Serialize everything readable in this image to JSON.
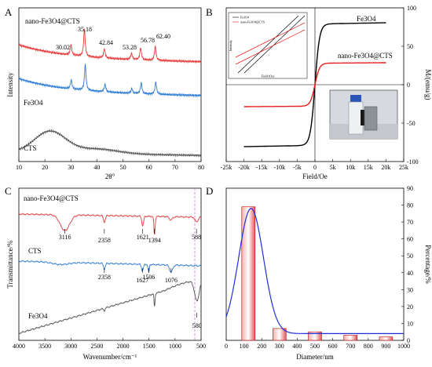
{
  "chart_data": [
    {
      "id": "A",
      "type": "line",
      "panel_label": "A",
      "title": "",
      "xlabel": "2θ°",
      "ylabel": "Intensity",
      "xlim": [
        10,
        80
      ],
      "xticks": [
        10,
        20,
        30,
        40,
        50,
        60,
        70,
        80
      ],
      "series": [
        {
          "name": "nano-Fe3O4@CTS",
          "color": "#e8393a",
          "offset": 0.66,
          "peaks": [
            {
              "x": 30.02,
              "h": 0.07
            },
            {
              "x": 35.18,
              "h": 0.18
            },
            {
              "x": 42.84,
              "h": 0.06
            },
            {
              "x": 53.28,
              "h": 0.04
            },
            {
              "x": 56.78,
              "h": 0.08
            },
            {
              "x": 62.4,
              "h": 0.09
            }
          ]
        },
        {
          "name": "Fe3O4",
          "color": "#2b7bd6",
          "offset": 0.44,
          "peaks": [
            {
              "x": 30.1,
              "h": 0.06
            },
            {
              "x": 35.5,
              "h": 0.17
            },
            {
              "x": 43.1,
              "h": 0.05
            },
            {
              "x": 53.4,
              "h": 0.03
            },
            {
              "x": 57.0,
              "h": 0.07
            },
            {
              "x": 62.6,
              "h": 0.08
            }
          ]
        },
        {
          "name": "CTS",
          "color": "#505050",
          "offset": 0.06,
          "hump": {
            "x": 22,
            "h": 0.14
          }
        }
      ],
      "peak_labels": [
        "30.02",
        "35.18",
        "42.84",
        "53.28",
        "56.78",
        "62.40"
      ],
      "series_labels": [
        "nano-Fe3O4@CTS",
        "Fe3O4",
        "CTS"
      ]
    },
    {
      "id": "B",
      "type": "line",
      "panel_label": "B",
      "title": "",
      "xlabel": "Field/Oe",
      "ylabel": "M/(emu/g)",
      "xlim": [
        -25000,
        25000
      ],
      "ylim": [
        -100,
        100
      ],
      "xticks": [
        "-25k",
        "-20k",
        "-15k",
        "-10k",
        "-5k",
        "0",
        "5k",
        "10k",
        "15k",
        "20k",
        "25k"
      ],
      "yticks": [
        -100,
        -50,
        0,
        50,
        100
      ],
      "series": [
        {
          "name": "Fe3O4",
          "color": "#000000",
          "ms": 79,
          "field_range": [
            -20000,
            20000
          ]
        },
        {
          "name": "nano-Fe3O4@CTS",
          "color": "#e81c1c",
          "ms": 28,
          "field_range": [
            -20000,
            20000
          ]
        }
      ],
      "inset_legend": [
        "Fe3O4",
        "nano-Fe3O4@CTS"
      ],
      "inset_xlabel": "Field (Oe)",
      "inset_ylabel": "Intensity"
    },
    {
      "id": "C",
      "type": "line",
      "panel_label": "C",
      "title": "",
      "xlabel": "Wavenumber/cm⁻¹",
      "ylabel": "Transmittance/%",
      "xlim": [
        4000,
        500
      ],
      "xticks": [
        4000,
        3500,
        3000,
        2500,
        2000,
        1500,
        1000,
        500
      ],
      "series": [
        {
          "name": "nano-Fe3O4@CTS",
          "color": "#e8393a",
          "bands": [
            3116,
            2358,
            1621,
            1394,
            588
          ]
        },
        {
          "name": "CTS",
          "color": "#2b7bd6",
          "bands": [
            2358,
            1627,
            1506,
            1076
          ]
        },
        {
          "name": "Fe3O4",
          "color": "#505050",
          "bands": [
            580
          ]
        }
      ],
      "band_labels": {
        "nano": [
          "3116",
          "2358",
          "1621",
          "1394",
          "588"
        ],
        "cts": [
          "2358",
          "1627",
          "1506",
          "1076"
        ],
        "fe": [
          "580"
        ]
      },
      "series_labels": [
        "nano-Fe3O4@CTS",
        "CTS",
        "Fe3O4"
      ]
    },
    {
      "id": "D",
      "type": "bar",
      "panel_label": "D",
      "title": "",
      "xlabel": "Diameter/nm",
      "ylabel": "Percentage/%",
      "xlim": [
        0,
        1000
      ],
      "ylim": [
        0,
        90
      ],
      "xticks": [
        0,
        100,
        200,
        300,
        400,
        500,
        600,
        700,
        800,
        900,
        1000
      ],
      "yticks": [
        0,
        10,
        20,
        30,
        40,
        50,
        60,
        70,
        80,
        90
      ],
      "bars": [
        {
          "x": 125,
          "width": 75,
          "value": 79
        },
        {
          "x": 300,
          "width": 75,
          "value": 7
        },
        {
          "x": 500,
          "width": 75,
          "value": 5
        },
        {
          "x": 700,
          "width": 75,
          "value": 3
        },
        {
          "x": 900,
          "width": 75,
          "value": 2
        }
      ],
      "fit": {
        "type": "gaussian",
        "center": 140,
        "sigma": 70,
        "amplitude": 74,
        "baseline": 4,
        "color": "#1f2fd6"
      }
    }
  ]
}
